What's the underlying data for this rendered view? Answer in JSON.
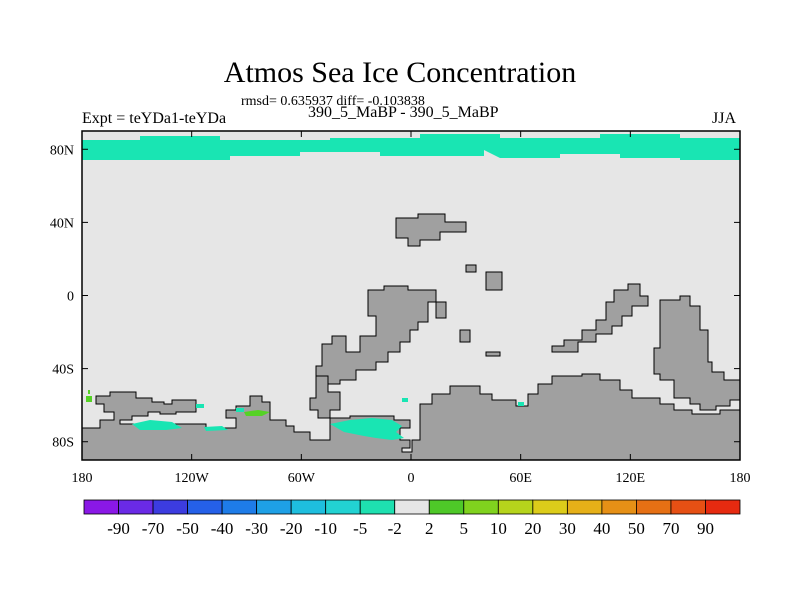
{
  "title": "Atmos Sea Ice Concentration",
  "stats": "rmsd= 0.635937 diff= -0.103838",
  "experiment": "Expt = teYDa1-teYDa",
  "period": "390_5_MaBP - 390_5_MaBP",
  "season": "JJA",
  "colors": {
    "ocean_background": "#e6e6e6",
    "land": "#a0a0a0",
    "ice_negative": "#19e5b3",
    "ice_slight_negative": "#30dcc8",
    "ice_positive": "#55d225"
  },
  "chart_data": {
    "type": "heatmap",
    "title": "Atmos Sea Ice Concentration",
    "x_ticks": [
      "180",
      "120W",
      "60W",
      "0",
      "60E",
      "120E",
      "180"
    ],
    "x_tick_values": [
      -180,
      -120,
      -60,
      0,
      60,
      120,
      180
    ],
    "y_ticks": [
      "80N",
      "40N",
      "0",
      "40S",
      "80S"
    ],
    "y_tick_values": [
      80,
      40,
      0,
      -40,
      -80
    ],
    "xlim": [
      -180,
      180
    ],
    "ylim": [
      -90,
      90
    ],
    "colorbar": {
      "labels": [
        "-90",
        "-70",
        "-50",
        "-40",
        "-30",
        "-20",
        "-10",
        "-5",
        "-2",
        "2",
        "5",
        "10",
        "20",
        "30",
        "40",
        "50",
        "70",
        "90"
      ],
      "colors": [
        "#8a18e6",
        "#6a2ae6",
        "#3c3ce0",
        "#2560e8",
        "#1e7ce8",
        "#1ea0e6",
        "#1ebede",
        "#22d2d2",
        "#1ee0b0",
        "#e6e6e6",
        "#4ec828",
        "#80d21e",
        "#b6d41c",
        "#dccc1a",
        "#e6b018",
        "#e69016",
        "#e67014",
        "#e65014",
        "#e62a10"
      ]
    },
    "ice_regions": [
      {
        "lon": [
          -180,
          180
        ],
        "lat": [
          72,
          85
        ],
        "value": -5,
        "label": "Arctic band"
      },
      {
        "lon": [
          -175,
          -174
        ],
        "lat": [
          -60,
          -56
        ],
        "value": 5,
        "label": "Southern Pacific point"
      },
      {
        "lon": [
          -88,
          -78
        ],
        "lat": [
          -66,
          -64
        ],
        "value": 5,
        "label": "Antarctic Peninsula"
      },
      {
        "lon": [
          -40,
          -5
        ],
        "lat": [
          -78,
          -70
        ],
        "value": -5,
        "label": "Weddell Sea"
      },
      {
        "lon": [
          -150,
          -130
        ],
        "lat": [
          -74,
          -70
        ],
        "value": -5,
        "label": "Ross Sea"
      }
    ]
  }
}
